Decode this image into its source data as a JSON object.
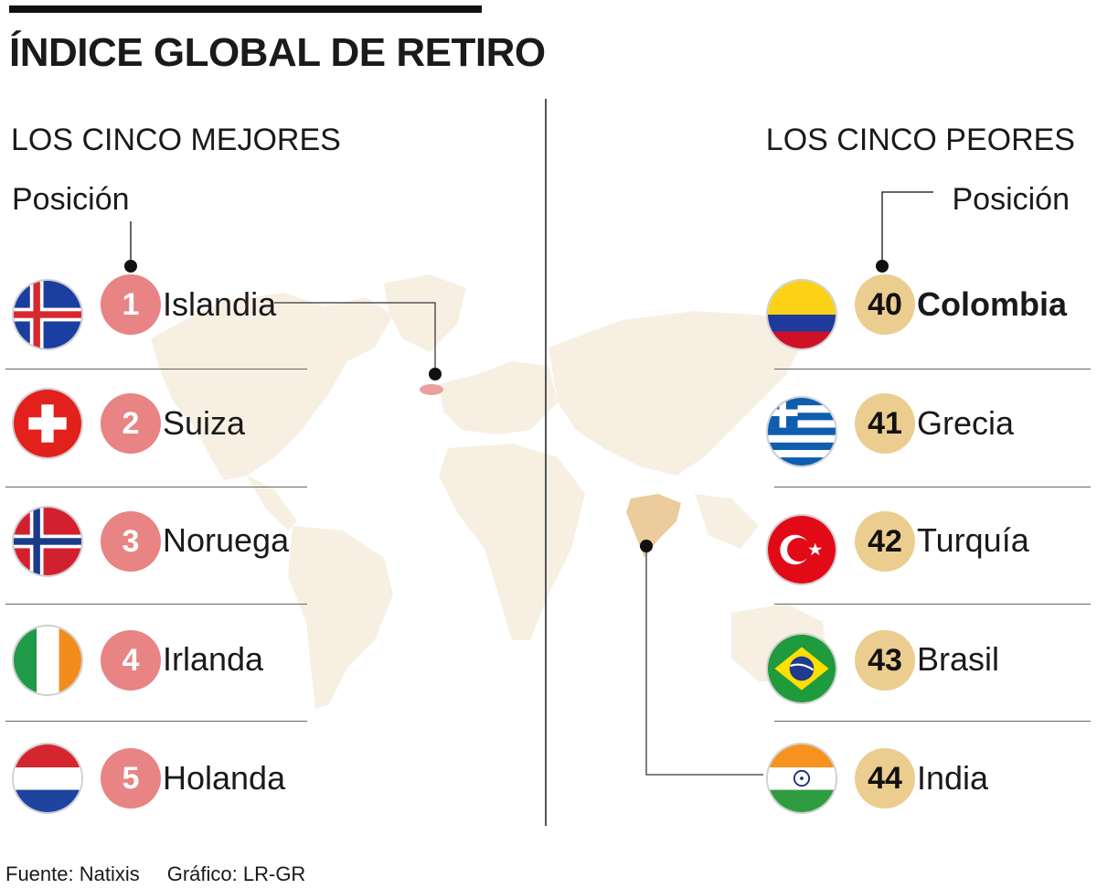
{
  "title": "ÍNDICE GLOBAL DE RETIRO",
  "best": {
    "heading": "LOS CINCO MEJORES",
    "position_label": "Posición",
    "items": [
      {
        "rank": "1",
        "country": "Islandia",
        "flag": "iceland-flag-icon"
      },
      {
        "rank": "2",
        "country": "Suiza",
        "flag": "switzerland-flag-icon"
      },
      {
        "rank": "3",
        "country": "Noruega",
        "flag": "norway-flag-icon"
      },
      {
        "rank": "4",
        "country": "Irlanda",
        "flag": "ireland-flag-icon"
      },
      {
        "rank": "5",
        "country": "Holanda",
        "flag": "netherlands-flag-icon"
      }
    ]
  },
  "worst": {
    "heading": "LOS CINCO PEORES",
    "position_label": "Posición",
    "items": [
      {
        "rank": "40",
        "country": "Colombia",
        "flag": "colombia-flag-icon"
      },
      {
        "rank": "41",
        "country": "Grecia",
        "flag": "greece-flag-icon"
      },
      {
        "rank": "42",
        "country": "Turquía",
        "flag": "turkey-flag-icon"
      },
      {
        "rank": "43",
        "country": "Brasil",
        "flag": "brazil-flag-icon"
      },
      {
        "rank": "44",
        "country": "India",
        "flag": "india-flag-icon"
      }
    ]
  },
  "footer": {
    "source": "Fuente: Natixis",
    "graphic": "Gráfico: LR-GR"
  },
  "colors": {
    "best_badge": "#e88484",
    "worst_badge": "#ebcd8f",
    "map_land": "#f7efe2",
    "highlight_land": "#eccb9c"
  }
}
